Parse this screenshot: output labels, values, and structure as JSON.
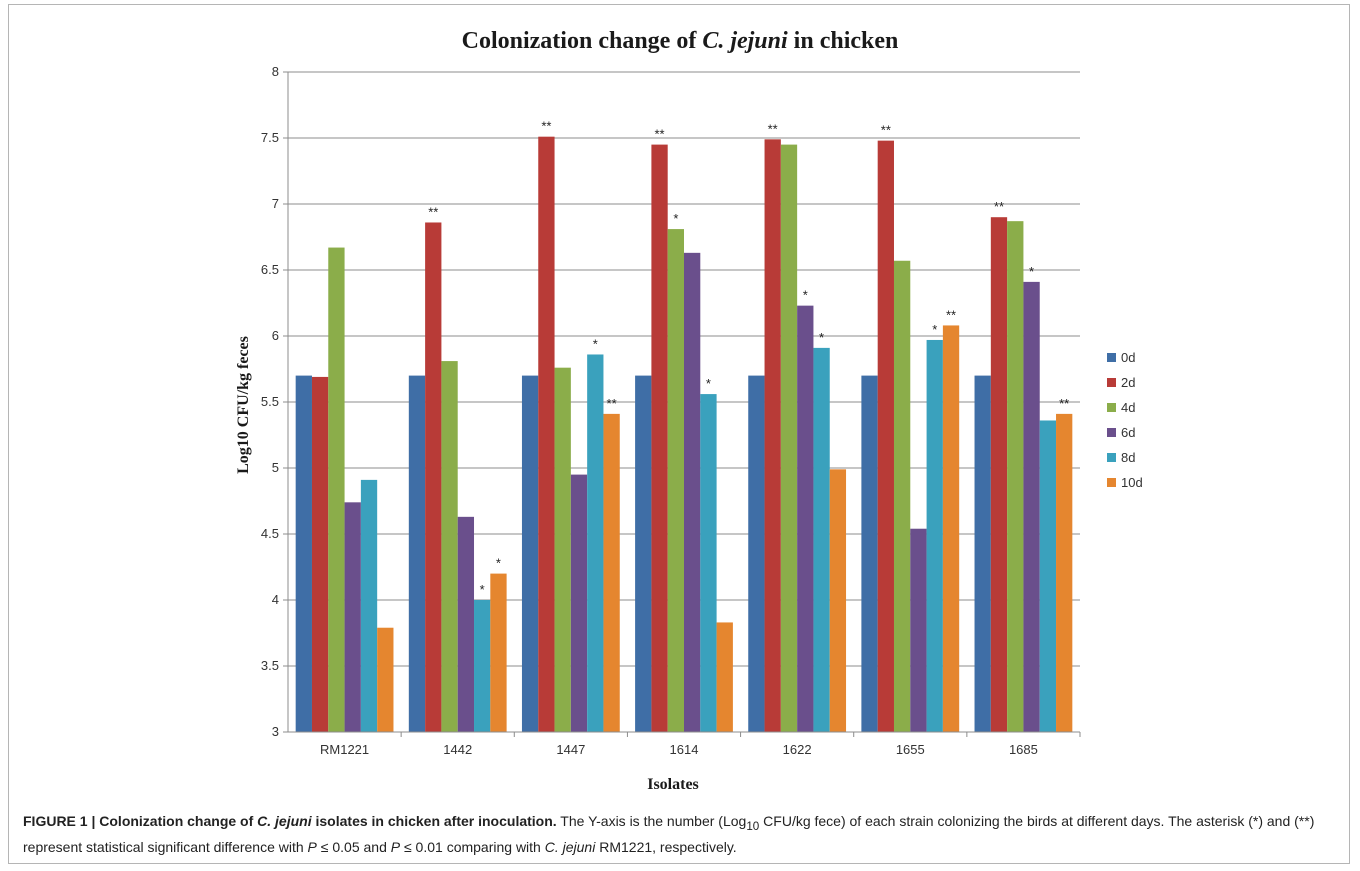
{
  "chart_data": {
    "type": "bar",
    "title_prefix": "Colonization change of ",
    "title_italic": "C. jejuni",
    "title_suffix": " in chicken",
    "xlabel": "Isolates",
    "ylabel": "Log10 CFU/kg feces",
    "ylim": [
      3,
      8
    ],
    "yticks": [
      "3",
      "3.5",
      "4",
      "4.5",
      "5",
      "5.5",
      "6",
      "6.5",
      "7",
      "7.5",
      "8"
    ],
    "grid": "horizontal",
    "legend_position": "right",
    "categories": [
      "RM1221",
      "1442",
      "1447",
      "1614",
      "1622",
      "1655",
      "1685"
    ],
    "series": [
      {
        "name": "0d",
        "color": "#3f6ea6",
        "values": [
          5.7,
          5.7,
          5.7,
          5.7,
          5.7,
          5.7,
          5.7
        ],
        "sig": [
          "",
          "",
          "",
          "",
          "",
          "",
          ""
        ]
      },
      {
        "name": "2d",
        "color": "#b83b37",
        "values": [
          5.69,
          6.86,
          7.51,
          7.45,
          7.49,
          7.48,
          6.9
        ],
        "sig": [
          "",
          "**",
          "**",
          "**",
          "**",
          "**",
          "**"
        ]
      },
      {
        "name": "4d",
        "color": "#8bad4a",
        "values": [
          6.67,
          5.81,
          5.76,
          6.81,
          7.45,
          6.57,
          6.87
        ],
        "sig": [
          "",
          "",
          "",
          "*",
          "",
          "",
          ""
        ]
      },
      {
        "name": "6d",
        "color": "#6a4f8c",
        "values": [
          4.74,
          4.63,
          4.95,
          6.63,
          6.23,
          4.54,
          6.41
        ],
        "sig": [
          "",
          "",
          "",
          "",
          "*",
          "",
          "*"
        ]
      },
      {
        "name": "8d",
        "color": "#3aa1bd",
        "values": [
          4.91,
          4.0,
          5.86,
          5.56,
          5.91,
          5.97,
          5.36
        ],
        "sig": [
          "",
          "*",
          "*",
          "*",
          "*",
          "*",
          ""
        ]
      },
      {
        "name": "10d",
        "color": "#e5862f",
        "values": [
          3.79,
          4.2,
          5.41,
          3.83,
          4.99,
          6.08,
          5.41
        ],
        "sig": [
          "",
          "*",
          "**",
          "",
          "",
          "**",
          "**"
        ]
      }
    ]
  },
  "caption": {
    "fig_label": "FIGURE 1 | ",
    "bold_1": "Colonization change of ",
    "bold_italic": "C. jejuni",
    "bold_2": " isolates in chicken after inoculation.",
    "text_1": " The Y-axis is the number (Log",
    "sub_10": "10",
    "text_2": " CFU/kg fece) of each strain colonizing the birds at different days. The asterisk (*) and (**) represent statistical significant difference with ",
    "p_var_1": "P",
    "p_rel_1": " ≤ 0.05 and ",
    "p_var_2": "P",
    "p_rel_2": " ≤ 0.01 comparing with ",
    "species": "C. jejuni",
    "text_3": " RM1221, respectively."
  }
}
